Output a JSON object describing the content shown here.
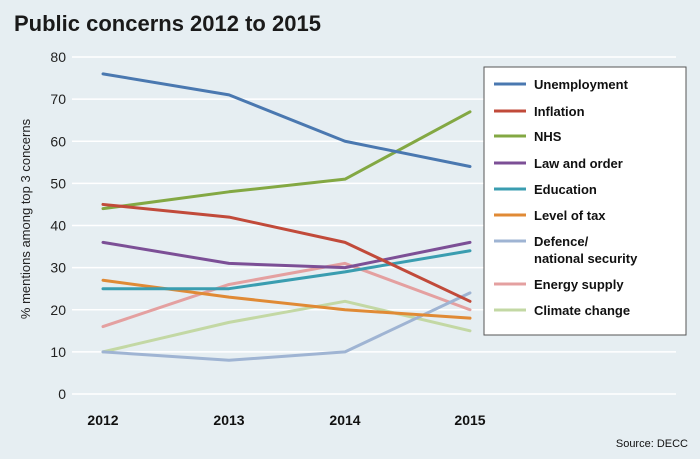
{
  "chart_data": {
    "type": "line",
    "title": "Public concerns 2012 to 2015",
    "ylabel": "% mentions among top 3 concerns",
    "xlabel": "",
    "x": [
      "2012",
      "2013",
      "2014",
      "2015"
    ],
    "ylim": [
      0,
      80
    ],
    "yticks": [
      0,
      10,
      20,
      30,
      40,
      50,
      60,
      70,
      80
    ],
    "grid": true,
    "legend_position": "right",
    "source": "Source: DECC",
    "series": [
      {
        "name": "Unemployment",
        "legend_lines": [
          "Unemployment"
        ],
        "color": "#4a78b0",
        "values": [
          76,
          71,
          60,
          54
        ]
      },
      {
        "name": "Inflation",
        "legend_lines": [
          "Inflation"
        ],
        "color": "#c14a3a",
        "values": [
          45,
          42,
          36,
          22
        ]
      },
      {
        "name": "NHS",
        "legend_lines": [
          "NHS"
        ],
        "color": "#83a843",
        "values": [
          44,
          48,
          51,
          67
        ]
      },
      {
        "name": "Law and order",
        "legend_lines": [
          "Law and order"
        ],
        "color": "#7c4f96",
        "values": [
          36,
          31,
          30,
          36
        ]
      },
      {
        "name": "Education",
        "legend_lines": [
          "Education"
        ],
        "color": "#3a9db0",
        "values": [
          25,
          25,
          29,
          34
        ]
      },
      {
        "name": "Level of tax",
        "legend_lines": [
          "Level of tax"
        ],
        "color": "#e08a35",
        "values": [
          27,
          23,
          20,
          18
        ]
      },
      {
        "name": "Defence/ national security",
        "legend_lines": [
          "Defence/",
          "national security"
        ],
        "color": "#9fb4d3",
        "values": [
          10,
          8,
          10,
          24
        ]
      },
      {
        "name": "Energy supply",
        "legend_lines": [
          "Energy supply"
        ],
        "color": "#e4a0a0",
        "values": [
          16,
          26,
          31,
          20
        ]
      },
      {
        "name": "Climate change",
        "legend_lines": [
          "Climate change"
        ],
        "color": "#c3d8a4",
        "values": [
          10,
          17,
          22,
          15
        ]
      }
    ]
  }
}
